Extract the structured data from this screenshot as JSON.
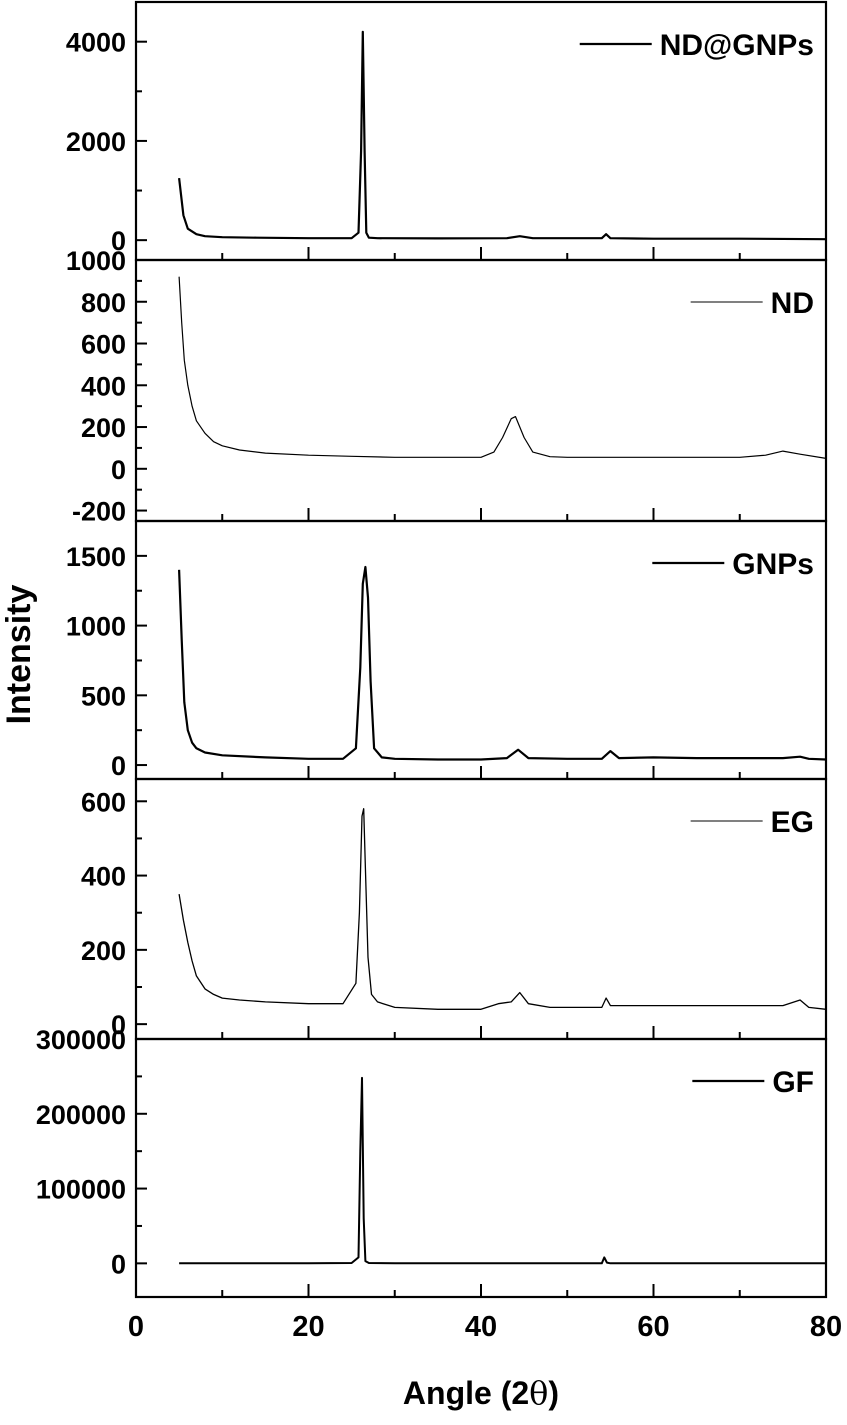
{
  "chart_data": {
    "type": "line",
    "xlabel_main": "Angle (2",
    "xlabel_theta": "θ",
    "xlabel_close": ")",
    "ylabel": "Intensity",
    "xlim": [
      0,
      80
    ],
    "xticks": [
      0,
      20,
      40,
      60,
      80
    ],
    "xtick_labels": [
      "0",
      "20",
      "40",
      "60",
      "80"
    ],
    "panels": [
      {
        "id": "ndgnps",
        "legend": "ND@GNPs",
        "ylim": [
          -400,
          4800
        ],
        "yticks": [
          0,
          2000,
          4000
        ],
        "ytick_labels": [
          "0",
          "2000",
          "4000"
        ],
        "line_width": 2.2,
        "legend_line_width": 2.2,
        "x": [
          5,
          5.5,
          6,
          7,
          8,
          10,
          14,
          20,
          25,
          25.8,
          26.1,
          26.3,
          26.5,
          26.7,
          27,
          28,
          35,
          43,
          44.5,
          46,
          54,
          54.5,
          55,
          60,
          70,
          80
        ],
        "y": [
          1250,
          500,
          230,
          120,
          80,
          60,
          50,
          40,
          40,
          150,
          1800,
          4200,
          1800,
          150,
          50,
          40,
          35,
          40,
          80,
          40,
          40,
          120,
          40,
          30,
          30,
          20
        ]
      },
      {
        "id": "nd",
        "legend": "ND",
        "ylim": [
          -250,
          1000
        ],
        "yticks": [
          -200,
          0,
          200,
          400,
          600,
          800,
          1000
        ],
        "ytick_labels": [
          "-200",
          "0",
          "200",
          "400",
          "600",
          "800",
          "1000"
        ],
        "line_width": 1.2,
        "legend_line_width": 1,
        "x": [
          5,
          5.3,
          5.6,
          6,
          6.5,
          7,
          8,
          9,
          10,
          12,
          15,
          20,
          25,
          30,
          35,
          40,
          41.5,
          42.5,
          43.5,
          44,
          45,
          46,
          48,
          50,
          55,
          60,
          65,
          70,
          73,
          75,
          77,
          80
        ],
        "y": [
          920,
          700,
          520,
          400,
          300,
          230,
          170,
          130,
          110,
          90,
          75,
          65,
          60,
          55,
          55,
          55,
          80,
          150,
          240,
          250,
          150,
          80,
          58,
          55,
          55,
          55,
          55,
          55,
          65,
          85,
          70,
          50
        ]
      },
      {
        "id": "gnps",
        "legend": "GNPs",
        "ylim": [
          -100,
          1750
        ],
        "yticks": [
          0,
          500,
          1000,
          1500
        ],
        "ytick_labels": [
          "0",
          "500",
          "1000",
          "1500"
        ],
        "line_width": 2.2,
        "legend_line_width": 2.2,
        "x": [
          5,
          5.3,
          5.6,
          6,
          6.5,
          7,
          8,
          10,
          15,
          20,
          24,
          25.5,
          26,
          26.3,
          26.6,
          26.9,
          27.2,
          27.6,
          28.5,
          30,
          35,
          40,
          43,
          44.3,
          45.5,
          50,
          54,
          55,
          56,
          60,
          65,
          70,
          75,
          77,
          78,
          80
        ],
        "y": [
          1400,
          900,
          450,
          250,
          160,
          120,
          90,
          70,
          55,
          45,
          45,
          120,
          700,
          1300,
          1420,
          1200,
          600,
          120,
          55,
          45,
          40,
          40,
          50,
          110,
          50,
          45,
          45,
          100,
          50,
          55,
          50,
          50,
          50,
          60,
          45,
          40
        ]
      },
      {
        "id": "eg",
        "legend": "EG",
        "ylim": [
          -40,
          660
        ],
        "yticks": [
          0,
          200,
          400,
          600
        ],
        "ytick_labels": [
          "0",
          "200",
          "400",
          "600"
        ],
        "line_width": 1.3,
        "legend_line_width": 1,
        "x": [
          5,
          5.5,
          6,
          6.5,
          7,
          8,
          9,
          10,
          12,
          15,
          20,
          24,
          25.5,
          25.9,
          26.2,
          26.4,
          26.6,
          26.9,
          27.3,
          28,
          30,
          35,
          40,
          42,
          43.5,
          44.5,
          45.5,
          48,
          54,
          54.5,
          55,
          60,
          65,
          70,
          75,
          77,
          78,
          80
        ],
        "y": [
          350,
          280,
          220,
          170,
          130,
          95,
          80,
          70,
          65,
          60,
          55,
          55,
          110,
          300,
          560,
          580,
          420,
          180,
          80,
          60,
          45,
          40,
          40,
          55,
          60,
          85,
          55,
          45,
          45,
          70,
          50,
          50,
          50,
          50,
          50,
          65,
          45,
          40
        ]
      },
      {
        "id": "gf",
        "legend": "GF",
        "ylim": [
          -45000,
          300000
        ],
        "yticks": [
          0,
          100000,
          200000,
          300000
        ],
        "ytick_labels": [
          "0",
          "100000",
          "200000",
          "300000"
        ],
        "line_width": 2,
        "legend_line_width": 2.2,
        "x": [
          5,
          10,
          20,
          25,
          25.8,
          26.0,
          26.2,
          26.4,
          26.6,
          27,
          30,
          40,
          50,
          54,
          54.3,
          54.6,
          55,
          60,
          70,
          80
        ],
        "y": [
          0,
          0,
          0,
          500,
          8000,
          150000,
          248000,
          60000,
          3000,
          500,
          0,
          0,
          0,
          0,
          8000,
          1000,
          0,
          0,
          0,
          0
        ]
      }
    ]
  }
}
